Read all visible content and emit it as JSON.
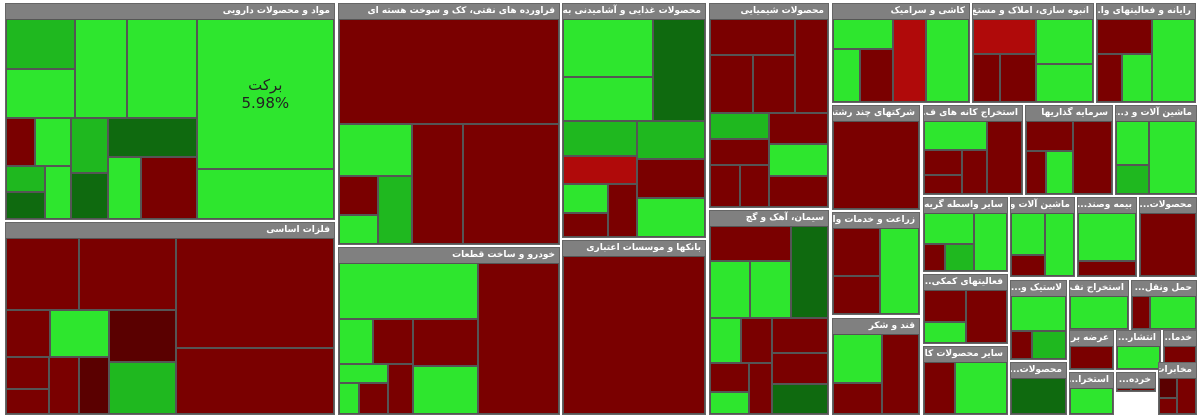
{
  "sectors": [
    {
      "title": "مواد و محصولات دارویی"
    },
    {
      "title": "فلزات اساسی"
    },
    {
      "title": "فراورده های نفتی، کک و سوخت هسته ای"
    },
    {
      "title": "خودرو و ساخت قطعات"
    },
    {
      "title": "محصولات غذایی و آشامیدنی به ..."
    },
    {
      "title": "بانکها و موسسات اعتباری"
    },
    {
      "title": "محصولات شیمیایی"
    },
    {
      "title": "سیمان، آهک و گچ"
    },
    {
      "title": "کاشی و سرامیک"
    },
    {
      "title": "انبوه سازی، املاک و مستغ..."
    },
    {
      "title": "رایانه و فعالیتهای وا..."
    },
    {
      "title": "شرکتهای چند رشته..."
    },
    {
      "title": "استخراج کانه های ف..."
    },
    {
      "title": "سرمایه گذاریها"
    },
    {
      "title": "ماشین آلات و د..."
    },
    {
      "title": "زراعت و خدمات وا..."
    },
    {
      "title": "قند و شکر"
    },
    {
      "title": "سایر واسطه گریه..."
    },
    {
      "title": "ماشین آلات و ..."
    },
    {
      "title": "بیمه وصند..."
    },
    {
      "title": "محصولات..."
    },
    {
      "title": "فعالیتهای کمکی..."
    },
    {
      "title": "لاستیک و..."
    },
    {
      "title": "استخراج نف..."
    },
    {
      "title": "حمل ونقل..."
    },
    {
      "title": "سایر محصولات کا..."
    },
    {
      "title": "عرضه بر..."
    },
    {
      "title": "انتشار..."
    },
    {
      "title": "خدما..."
    },
    {
      "title": "محصولات..."
    },
    {
      "title": "استخرا..."
    },
    {
      "title": "خرده..."
    },
    {
      "title": "مخابرات"
    }
  ],
  "highlight": {
    "symbol": "برکت",
    "change": "5.98%"
  }
}
